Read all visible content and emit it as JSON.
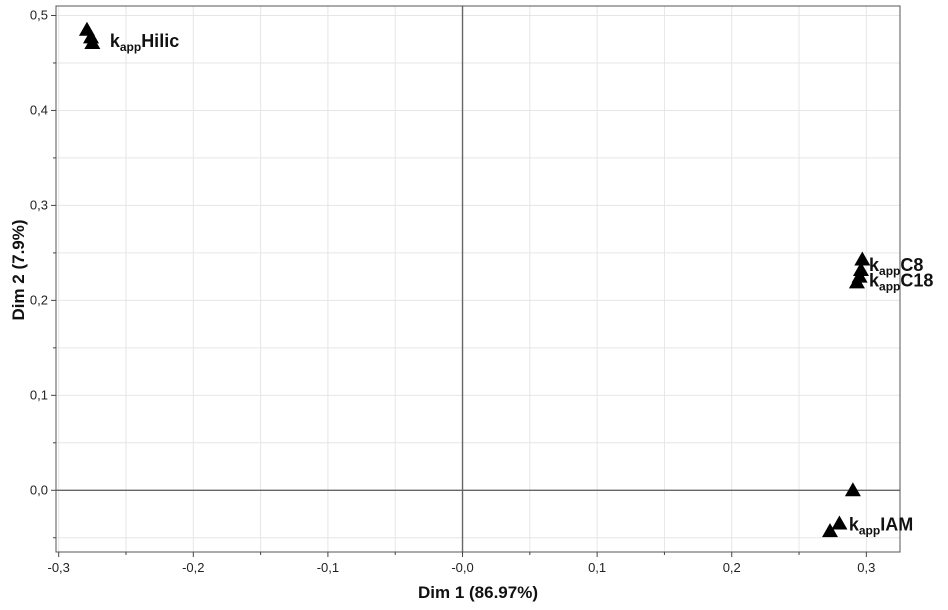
{
  "chart_data": {
    "type": "scatter",
    "xlabel": "Dim 1  (86.97%)",
    "ylabel": "Dim 2 (7.9%)",
    "xlim": [
      -0.302,
      0.325
    ],
    "ylim": [
      -0.065,
      0.51
    ],
    "x_ticks": [
      -0.3,
      -0.2,
      -0.1,
      0.0,
      0.1,
      0.2,
      0.3
    ],
    "x_tick_labels": [
      "-0,3",
      "-0,2",
      "-0,1",
      "-0,0",
      "0,1",
      "0,2",
      "0,3"
    ],
    "y_ticks": [
      0.0,
      0.1,
      0.2,
      0.3,
      0.4,
      0.5
    ],
    "y_tick_labels": [
      "0,0",
      "0,1",
      "0,2",
      "0,3",
      "0,4",
      "0,5"
    ],
    "grid": true,
    "reference_lines": {
      "x": 0.0,
      "y": 0.0
    },
    "marker": "triangle",
    "marker_color": "#000000",
    "points": [
      {
        "x": -0.279,
        "y": 0.485
      },
      {
        "x": -0.276,
        "y": 0.477
      },
      {
        "x": -0.275,
        "y": 0.471
      },
      {
        "x": 0.297,
        "y": 0.243
      },
      {
        "x": 0.296,
        "y": 0.232
      },
      {
        "x": 0.295,
        "y": 0.225
      },
      {
        "x": 0.293,
        "y": 0.219
      },
      {
        "x": 0.29,
        "y": 0.0
      },
      {
        "x": 0.28,
        "y": -0.035
      },
      {
        "x": 0.273,
        "y": -0.043
      }
    ],
    "annotations": [
      {
        "base": "k",
        "sub": "app",
        "text": "Hilic",
        "x": -0.262,
        "y": 0.473
      },
      {
        "base": "k",
        "sub": "app",
        "text": "C8",
        "x": 0.302,
        "y": 0.237
      },
      {
        "base": "k",
        "sub": "app",
        "text": "C18",
        "x": 0.302,
        "y": 0.221
      },
      {
        "base": "k",
        "sub": "app",
        "text": "IAM",
        "x": 0.287,
        "y": -0.036
      }
    ]
  }
}
